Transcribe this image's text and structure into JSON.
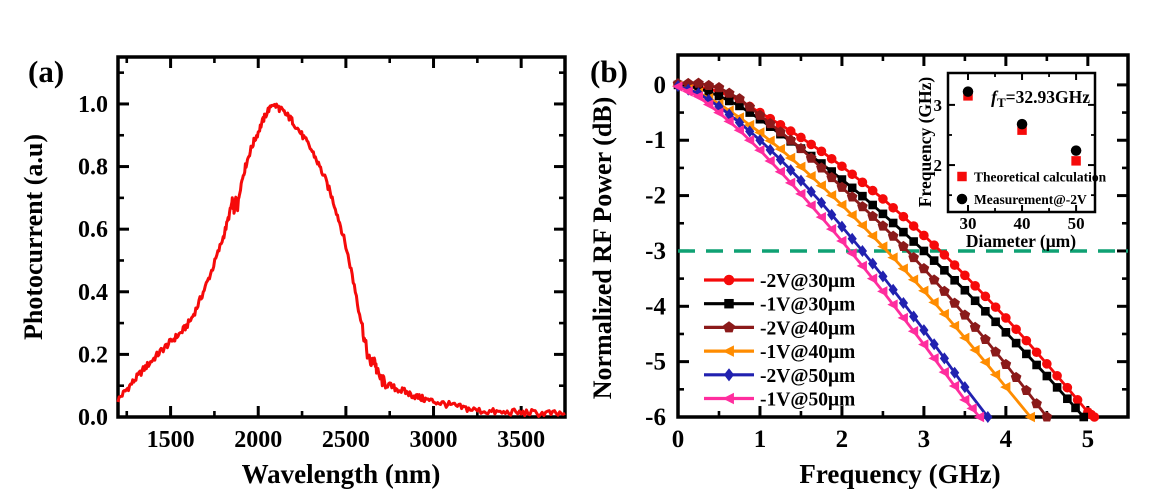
{
  "figure": {
    "background": "#ffffff",
    "type": "two-panel scientific figure"
  },
  "chart_data": [
    {
      "id": "panel_a",
      "type": "line",
      "panel_label": "(a)",
      "xlabel": "Wavelength (nm)",
      "ylabel": "Photocurrent (a.u)",
      "xlim": [
        1200,
        3750
      ],
      "ylim": [
        0,
        1.15
      ],
      "x_major_ticks": [
        1500,
        2000,
        2500,
        3000,
        3500
      ],
      "x_minor_ticks": [
        1250,
        1750,
        2250,
        2750,
        3250,
        3750
      ],
      "y_major_ticks": [
        0.0,
        0.2,
        0.4,
        0.6,
        0.8,
        1.0
      ],
      "y_minor_ticks": [
        0.1,
        0.3,
        0.5,
        0.7,
        0.9,
        1.1
      ],
      "grid": false,
      "line_color": "#f50a0a",
      "points": [
        [
          1200,
          0.055
        ],
        [
          1230,
          0.075
        ],
        [
          1260,
          0.095
        ],
        [
          1290,
          0.115
        ],
        [
          1320,
          0.135
        ],
        [
          1350,
          0.155
        ],
        [
          1380,
          0.172
        ],
        [
          1410,
          0.19
        ],
        [
          1440,
          0.208
        ],
        [
          1470,
          0.224
        ],
        [
          1500,
          0.24
        ],
        [
          1530,
          0.255
        ],
        [
          1560,
          0.27
        ],
        [
          1590,
          0.29
        ],
        [
          1620,
          0.315
        ],
        [
          1650,
          0.35
        ],
        [
          1680,
          0.39
        ],
        [
          1710,
          0.432
        ],
        [
          1740,
          0.476
        ],
        [
          1770,
          0.524
        ],
        [
          1800,
          0.574
        ],
        [
          1820,
          0.614
        ],
        [
          1840,
          0.658
        ],
        [
          1852,
          0.69
        ],
        [
          1862,
          0.655
        ],
        [
          1872,
          0.7
        ],
        [
          1882,
          0.668
        ],
        [
          1895,
          0.725
        ],
        [
          1915,
          0.775
        ],
        [
          1935,
          0.815
        ],
        [
          1955,
          0.85
        ],
        [
          1975,
          0.88
        ],
        [
          2000,
          0.91
        ],
        [
          2020,
          0.938
        ],
        [
          2040,
          0.962
        ],
        [
          2060,
          0.984
        ],
        [
          2080,
          0.998
        ],
        [
          2100,
          0.995
        ],
        [
          2120,
          0.986
        ],
        [
          2140,
          0.976
        ],
        [
          2160,
          0.966
        ],
        [
          2180,
          0.955
        ],
        [
          2200,
          0.942
        ],
        [
          2230,
          0.917
        ],
        [
          2260,
          0.892
        ],
        [
          2290,
          0.866
        ],
        [
          2320,
          0.836
        ],
        [
          2350,
          0.8
        ],
        [
          2380,
          0.763
        ],
        [
          2410,
          0.718
        ],
        [
          2440,
          0.668
        ],
        [
          2470,
          0.61
        ],
        [
          2500,
          0.545
        ],
        [
          2530,
          0.47
        ],
        [
          2560,
          0.39
        ],
        [
          2590,
          0.3
        ],
        [
          2610,
          0.235
        ],
        [
          2630,
          0.185
        ],
        [
          2648,
          0.168
        ],
        [
          2662,
          0.19
        ],
        [
          2678,
          0.142
        ],
        [
          2700,
          0.12
        ],
        [
          2720,
          0.11
        ],
        [
          2750,
          0.1
        ],
        [
          2780,
          0.092
        ],
        [
          2810,
          0.086
        ],
        [
          2840,
          0.08
        ],
        [
          2870,
          0.072
        ],
        [
          2900,
          0.066
        ],
        [
          2930,
          0.06
        ],
        [
          2960,
          0.055
        ],
        [
          3000,
          0.05
        ],
        [
          3040,
          0.045
        ],
        [
          3080,
          0.04
        ],
        [
          3120,
          0.035
        ],
        [
          3160,
          0.03
        ],
        [
          3200,
          0.026
        ],
        [
          3250,
          0.021
        ],
        [
          3300,
          0.018
        ],
        [
          3350,
          0.016
        ],
        [
          3400,
          0.013
        ],
        [
          3450,
          0.016
        ],
        [
          3500,
          0.012
        ],
        [
          3550,
          0.015
        ],
        [
          3600,
          0.01
        ],
        [
          3650,
          0.013
        ],
        [
          3700,
          0.009
        ],
        [
          3750,
          0.012
        ]
      ]
    },
    {
      "id": "panel_b",
      "type": "line",
      "panel_label": "(b)",
      "xlabel": "Frequency (GHz)",
      "ylabel": "Normalized RF Power (dB)",
      "xlim": [
        0,
        5.49
      ],
      "ylim": [
        -6,
        0.54
      ],
      "x_major_ticks": [
        0,
        1,
        2,
        3,
        4,
        5
      ],
      "x_minor_ticks": [
        0.5,
        1.5,
        2.5,
        3.5,
        4.5
      ],
      "y_major_ticks": [
        0,
        -1,
        -2,
        -3,
        -4,
        -5,
        -6
      ],
      "y_minor_ticks": [
        -0.5,
        -1.5,
        -2.5,
        -3.5,
        -4.5,
        -5.5
      ],
      "grid": false,
      "reference_line": {
        "y": -3,
        "color": "#0fa173",
        "style": "dashed"
      },
      "legend_position": "lower-left",
      "series": [
        {
          "name": "-2V@30μm",
          "color": "#f50a0a",
          "marker": "circle",
          "points": [
            [
              0,
              0
            ],
            [
              0.25,
              -0.03
            ],
            [
              0.5,
              -0.12
            ],
            [
              0.75,
              -0.28
            ],
            [
              1,
              -0.5
            ],
            [
              1.25,
              -0.72
            ],
            [
              1.5,
              -0.95
            ],
            [
              1.75,
              -1.2
            ],
            [
              2,
              -1.47
            ],
            [
              2.25,
              -1.76
            ],
            [
              2.5,
              -2.06
            ],
            [
              2.75,
              -2.38
            ],
            [
              3,
              -2.72
            ],
            [
              3.25,
              -3.07
            ],
            [
              3.5,
              -3.44
            ],
            [
              3.75,
              -3.82
            ],
            [
              4,
              -4.21
            ],
            [
              4.25,
              -4.62
            ],
            [
              4.5,
              -5.04
            ],
            [
              4.75,
              -5.47
            ],
            [
              5,
              -5.91
            ],
            [
              5.08,
              -6
            ]
          ]
        },
        {
          "name": "-1V@30μm",
          "color": "#000000",
          "marker": "square",
          "points": [
            [
              0,
              0
            ],
            [
              0.25,
              -0.06
            ],
            [
              0.5,
              -0.2
            ],
            [
              0.75,
              -0.38
            ],
            [
              1,
              -0.62
            ],
            [
              1.25,
              -0.89
            ],
            [
              1.5,
              -1.15
            ],
            [
              1.75,
              -1.42
            ],
            [
              2,
              -1.71
            ],
            [
              2.25,
              -2.01
            ],
            [
              2.5,
              -2.33
            ],
            [
              2.75,
              -2.66
            ],
            [
              3,
              -3.0
            ],
            [
              3.25,
              -3.35
            ],
            [
              3.5,
              -3.71
            ],
            [
              3.75,
              -4.09
            ],
            [
              4,
              -4.47
            ],
            [
              4.25,
              -4.86
            ],
            [
              4.5,
              -5.26
            ],
            [
              4.75,
              -5.67
            ],
            [
              4.95,
              -6
            ]
          ]
        },
        {
          "name": "-2V@40μm",
          "color": "#8b1a1a",
          "marker": "pentagon",
          "points": [
            [
              0,
              0.02
            ],
            [
              0.25,
              0.03
            ],
            [
              0.5,
              -0.05
            ],
            [
              0.75,
              -0.25
            ],
            [
              1,
              -0.55
            ],
            [
              1.25,
              -0.85
            ],
            [
              1.5,
              -1.15
            ],
            [
              1.75,
              -1.5
            ],
            [
              2,
              -1.85
            ],
            [
              2.25,
              -2.2
            ],
            [
              2.5,
              -2.55
            ],
            [
              2.75,
              -2.92
            ],
            [
              3,
              -3.32
            ],
            [
              3.25,
              -3.73
            ],
            [
              3.5,
              -4.16
            ],
            [
              3.75,
              -4.6
            ],
            [
              4,
              -5.05
            ],
            [
              4.25,
              -5.52
            ],
            [
              4.5,
              -6
            ]
          ]
        },
        {
          "name": "-1V@40μm",
          "color": "#ff8c00",
          "marker": "triangle-left",
          "points": [
            [
              0,
              -0.02
            ],
            [
              0.25,
              -0.14
            ],
            [
              0.5,
              -0.34
            ],
            [
              0.75,
              -0.59
            ],
            [
              1,
              -0.86
            ],
            [
              1.25,
              -1.16
            ],
            [
              1.5,
              -1.48
            ],
            [
              1.75,
              -1.82
            ],
            [
              2,
              -2.17
            ],
            [
              2.25,
              -2.54
            ],
            [
              2.5,
              -2.92
            ],
            [
              2.75,
              -3.32
            ],
            [
              3,
              -3.72
            ],
            [
              3.25,
              -4.14
            ],
            [
              3.5,
              -4.57
            ],
            [
              3.75,
              -5.01
            ],
            [
              4,
              -5.46
            ],
            [
              4.3,
              -6
            ]
          ]
        },
        {
          "name": "-2V@50μm",
          "color": "#2121b0",
          "marker": "diamond",
          "points": [
            [
              0,
              -0.02
            ],
            [
              0.25,
              -0.15
            ],
            [
              0.5,
              -0.39
            ],
            [
              0.75,
              -0.68
            ],
            [
              1,
              -1.0
            ],
            [
              1.25,
              -1.35
            ],
            [
              1.5,
              -1.73
            ],
            [
              1.75,
              -2.13
            ],
            [
              2,
              -2.56
            ],
            [
              2.25,
              -3.0
            ],
            [
              2.5,
              -3.46
            ],
            [
              2.75,
              -3.94
            ],
            [
              3,
              -4.43
            ],
            [
              3.25,
              -4.94
            ],
            [
              3.5,
              -5.46
            ],
            [
              3.78,
              -6
            ]
          ]
        },
        {
          "name": "-1V@50μm",
          "color": "#ff2d9e",
          "marker": "triangle-left",
          "points": [
            [
              0,
              -0.03
            ],
            [
              0.25,
              -0.21
            ],
            [
              0.5,
              -0.5
            ],
            [
              0.75,
              -0.82
            ],
            [
              1,
              -1.18
            ],
            [
              1.25,
              -1.57
            ],
            [
              1.5,
              -1.97
            ],
            [
              1.75,
              -2.39
            ],
            [
              2,
              -2.82
            ],
            [
              2.25,
              -3.27
            ],
            [
              2.5,
              -3.73
            ],
            [
              2.75,
              -4.21
            ],
            [
              3,
              -4.69
            ],
            [
              3.25,
              -5.19
            ],
            [
              3.5,
              -5.69
            ],
            [
              3.68,
              -6
            ]
          ]
        }
      ]
    },
    {
      "id": "inset",
      "type": "scatter",
      "xlabel": "Diameter (μm)",
      "ylabel": "Frequency (GHz)",
      "xlim": [
        26.3,
        53.5
      ],
      "ylim": [
        1.22,
        3.53
      ],
      "x_major_ticks": [
        30,
        40,
        50
      ],
      "x_minor_ticks": [
        35,
        45
      ],
      "y_major_ticks": [
        2,
        3
      ],
      "y_minor_ticks": [
        1.5,
        2.5
      ],
      "annotation": {
        "italic": "f",
        "sub": "T",
        "text": "=32.93GHz"
      },
      "series": [
        {
          "name": "Theoretical calculation",
          "color": "#f50a0a",
          "marker": "square",
          "points": [
            [
              30,
              3.15
            ],
            [
              40,
              2.58
            ],
            [
              50,
              2.07
            ]
          ]
        },
        {
          "name": "Measurement@-2V",
          "color": "#000000",
          "marker": "circle",
          "points": [
            [
              30,
              3.22
            ],
            [
              40,
              2.68
            ],
            [
              50,
              2.24
            ]
          ]
        }
      ]
    }
  ]
}
